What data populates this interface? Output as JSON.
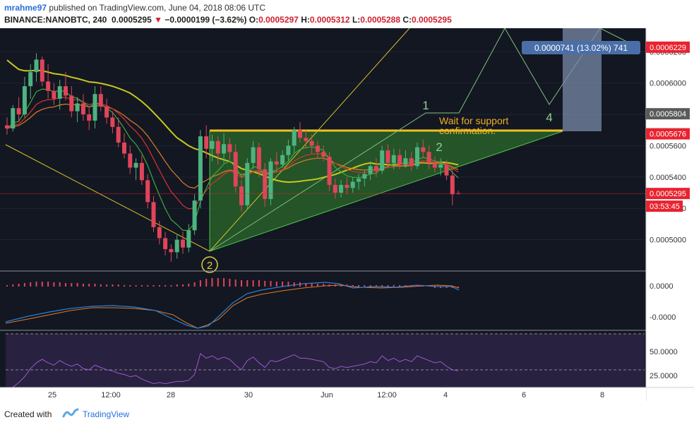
{
  "header": {
    "author": "mrahme97",
    "published_text": "published on TradingView.com, June 04, 2018 08:06 UTC",
    "symbol": "BINANCE:NANOBTC, 240",
    "last": "0.0005295",
    "change_arrow": "▼",
    "change": "−0.0000199 (−3.62%)",
    "o_label": "O:",
    "o": "0.0005297",
    "h_label": "H:",
    "h": "0.0005312",
    "l_label": "L:",
    "l": "0.0005288",
    "c_label": "C:",
    "c": "0.0005295"
  },
  "price_axis": {
    "ticks": [
      "0.0006200",
      "0.0006000",
      "0.0005800",
      "0.0005600",
      "0.0005400",
      "0.0005200",
      "0.0005000"
    ],
    "tags": [
      {
        "label": "0.0006229",
        "value": 0.0006229,
        "color": "#e8232f"
      },
      {
        "label": "0.0005804",
        "value": 0.0005804,
        "color": "#5a5a5a"
      },
      {
        "label": "0.0005676",
        "value": 0.0005676,
        "color": "#e8232f"
      },
      {
        "label": "0.0005295",
        "value": 0.0005295,
        "color": "#e8232f"
      }
    ],
    "countdown": "03:53:45"
  },
  "macd_axis": {
    "ticks": [
      "0.0000",
      "-0.0000"
    ]
  },
  "rsi_axis": {
    "ticks": [
      "50.0000",
      "25.0000"
    ]
  },
  "time_axis": {
    "labels": [
      "25",
      "12:00",
      "28",
      "30",
      "Jun",
      "12:00",
      "4",
      "6",
      "8"
    ]
  },
  "annotations": {
    "measure_box": "0.0000741 (13.02%) 741",
    "wait_text_1": "Wait for support",
    "wait_text_2": "confirmation.",
    "wave_1": "1",
    "wave_2": "2",
    "wave_2_circled": "2",
    "wave_4": "4"
  },
  "colors": {
    "background": "#131722",
    "up": "#4db380",
    "down": "#e0455a",
    "sma_yellow": "#c8c81e",
    "ema_orange": "#e07b2a",
    "ema_red": "#d63333",
    "ema_green": "#3caa3c",
    "triangle_fill": "#2c6e2c",
    "trendline": "#f0c020"
  },
  "footer": {
    "created_with": "Created with",
    "brand": "TradingView"
  },
  "chart_data": {
    "type": "candlestick",
    "ylim": [
      0.00048,
      0.000635
    ],
    "candles": [
      [
        0.000573,
        0.000578,
        0.000567,
        0.000571
      ],
      [
        0.000571,
        0.000586,
        0.000569,
        0.000584
      ],
      [
        0.000584,
        0.000591,
        0.000575,
        0.00058
      ],
      [
        0.00058,
        0.000604,
        0.000578,
        0.000598
      ],
      [
        0.000598,
        0.000612,
        0.00059,
        0.000607
      ],
      [
        0.000607,
        0.000619,
        0.000601,
        0.000615
      ],
      [
        0.000615,
        0.000617,
        0.000598,
        0.000601
      ],
      [
        0.000601,
        0.000612,
        0.00059,
        0.000595
      ],
      [
        0.000595,
        0.0006,
        0.000586,
        0.00059
      ],
      [
        0.00059,
        0.000602,
        0.000583,
        0.000598
      ],
      [
        0.000598,
        0.000607,
        0.000589,
        0.000592
      ],
      [
        0.000592,
        0.000598,
        0.000578,
        0.000582
      ],
      [
        0.000582,
        0.000591,
        0.000575,
        0.000587
      ],
      [
        0.000587,
        0.000593,
        0.000576,
        0.00058
      ],
      [
        0.00058,
        0.000585,
        0.00057,
        0.000576
      ],
      [
        0.000576,
        0.000598,
        0.000571,
        0.000593
      ],
      [
        0.000593,
        0.000598,
        0.000582,
        0.000585
      ],
      [
        0.000585,
        0.00059,
        0.000574,
        0.000578
      ],
      [
        0.000578,
        0.000582,
        0.000568,
        0.000572
      ],
      [
        0.000572,
        0.000578,
        0.000559,
        0.000562
      ],
      [
        0.000562,
        0.000568,
        0.000552,
        0.000555
      ],
      [
        0.000555,
        0.00056,
        0.000542,
        0.000546
      ],
      [
        0.000546,
        0.000552,
        0.000538,
        0.000549
      ],
      [
        0.000549,
        0.000554,
        0.000535,
        0.000538
      ],
      [
        0.000538,
        0.000542,
        0.00052,
        0.000524
      ],
      [
        0.000524,
        0.000528,
        0.000505,
        0.000508
      ],
      [
        0.000508,
        0.000512,
        0.000497,
        0.000501
      ],
      [
        0.000501,
        0.000505,
        0.00049,
        0.000494
      ],
      [
        0.000494,
        0.000497,
        0.000486,
        0.000492
      ],
      [
        0.000492,
        0.000503,
        0.000488,
        0.0005
      ],
      [
        0.0005,
        0.000505,
        0.000491,
        0.000495
      ],
      [
        0.000495,
        0.00051,
        0.000492,
        0.000506
      ],
      [
        0.000506,
        0.000529,
        0.000503,
        0.000525
      ],
      [
        0.000525,
        0.00057,
        0.00052,
        0.000566
      ],
      [
        0.000566,
        0.000573,
        0.000552,
        0.000558
      ],
      [
        0.000558,
        0.000567,
        0.00055,
        0.000563
      ],
      [
        0.000563,
        0.000566,
        0.000548,
        0.000555
      ],
      [
        0.000555,
        0.000568,
        0.000549,
        0.000561
      ],
      [
        0.000561,
        0.000565,
        0.000551,
        0.000556
      ],
      [
        0.000556,
        0.000561,
        0.00053,
        0.000534
      ],
      [
        0.000534,
        0.000538,
        0.000518,
        0.000522
      ],
      [
        0.000522,
        0.000552,
        0.000519,
        0.000549
      ],
      [
        0.000549,
        0.000563,
        0.000545,
        0.000559
      ],
      [
        0.000559,
        0.000562,
        0.00054,
        0.000545
      ],
      [
        0.000545,
        0.000549,
        0.000521,
        0.000526
      ],
      [
        0.000526,
        0.000552,
        0.000522,
        0.00055
      ],
      [
        0.00055,
        0.000556,
        0.000543,
        0.000548
      ],
      [
        0.000548,
        0.000557,
        0.000546,
        0.000554
      ],
      [
        0.000554,
        0.000564,
        0.00055,
        0.00056
      ],
      [
        0.00056,
        0.000572,
        0.000555,
        0.00057
      ],
      [
        0.00057,
        0.000575,
        0.000562,
        0.000565
      ],
      [
        0.000565,
        0.00057,
        0.000558,
        0.000563
      ],
      [
        0.000563,
        0.000567,
        0.000555,
        0.00056
      ],
      [
        0.00056,
        0.000563,
        0.000552,
        0.000556
      ],
      [
        0.000556,
        0.00056,
        0.00055,
        0.000553
      ],
      [
        0.000553,
        0.000556,
        0.000531,
        0.000535
      ],
      [
        0.000535,
        0.000539,
        0.000526,
        0.00053
      ],
      [
        0.00053,
        0.000538,
        0.000527,
        0.000535
      ],
      [
        0.000535,
        0.00054,
        0.000529,
        0.000533
      ],
      [
        0.000533,
        0.00054,
        0.00053,
        0.000537
      ],
      [
        0.000537,
        0.000542,
        0.000532,
        0.000539
      ],
      [
        0.000539,
        0.000544,
        0.000534,
        0.000542
      ],
      [
        0.000542,
        0.00055,
        0.000538,
        0.000547
      ],
      [
        0.000547,
        0.000552,
        0.00054,
        0.000544
      ],
      [
        0.000544,
        0.00056,
        0.000542,
        0.000557
      ],
      [
        0.000557,
        0.000561,
        0.000546,
        0.000549
      ],
      [
        0.000549,
        0.000558,
        0.000545,
        0.000554
      ],
      [
        0.000554,
        0.000558,
        0.000545,
        0.000548
      ],
      [
        0.000548,
        0.000557,
        0.000546,
        0.000552
      ],
      [
        0.000552,
        0.000556,
        0.000544,
        0.000547
      ],
      [
        0.000547,
        0.000562,
        0.000545,
        0.000559
      ],
      [
        0.000559,
        0.000564,
        0.000552,
        0.000556
      ],
      [
        0.000556,
        0.00056,
        0.000545,
        0.000549
      ],
      [
        0.000549,
        0.000553,
        0.000543,
        0.000546
      ],
      [
        0.000546,
        0.000552,
        0.000541,
        0.000548
      ],
      [
        0.000548,
        0.000551,
        0.000538,
        0.000541
      ],
      [
        0.000541,
        0.000545,
        0.000522,
        0.000529
      ],
      [
        0.0005297,
        0.0005312,
        0.0005288,
        0.0005295
      ]
    ],
    "rsi": [
      22,
      26,
      30,
      35,
      42,
      47,
      50,
      47,
      45,
      49,
      46,
      44,
      46,
      42,
      41,
      45,
      43,
      41,
      40,
      38,
      37,
      35,
      36,
      33,
      31,
      29,
      30,
      29,
      30,
      31,
      31,
      32,
      37,
      55,
      51,
      53,
      50,
      52,
      50,
      45,
      41,
      49,
      52,
      47,
      43,
      49,
      48,
      50,
      52,
      54,
      51,
      51,
      50,
      49,
      48,
      43,
      42,
      44,
      43,
      44,
      45,
      46,
      48,
      47,
      53,
      49,
      51,
      48,
      50,
      48,
      53,
      51,
      49,
      47,
      48,
      44,
      41,
      40
    ]
  }
}
